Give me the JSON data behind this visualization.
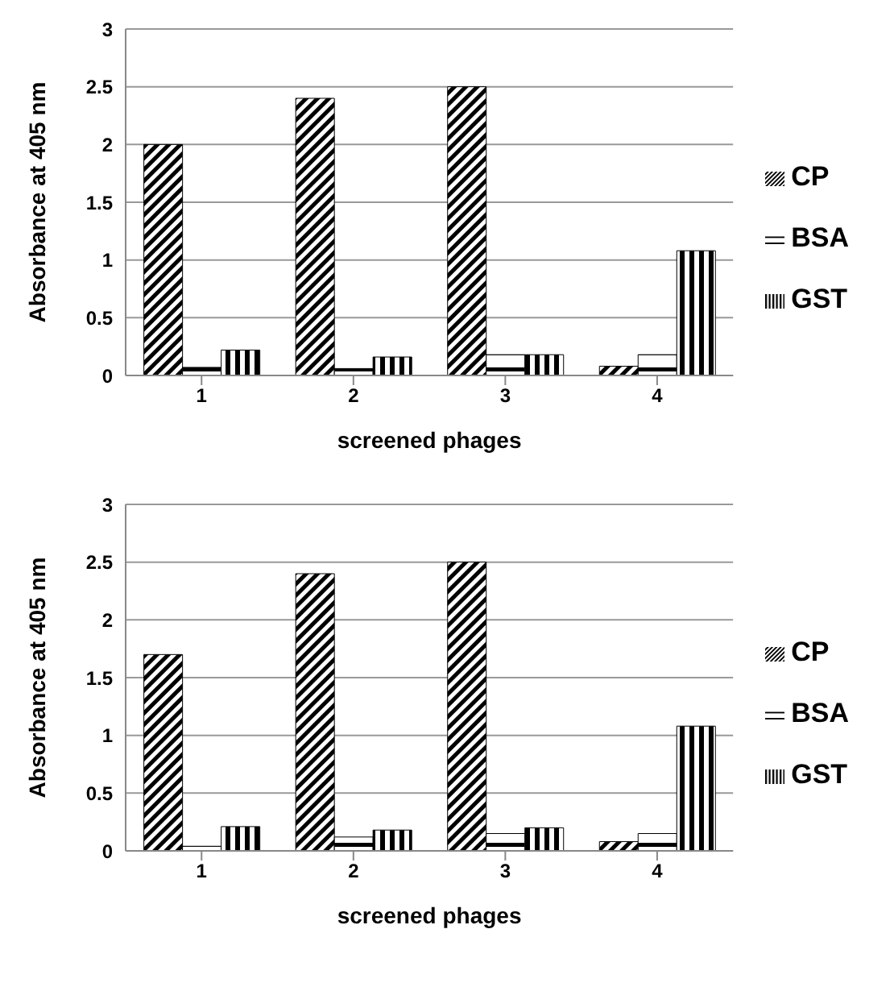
{
  "chart_data": [
    {
      "type": "bar",
      "xlabel": "screened phages",
      "ylabel": "Absorbance at 405 nm",
      "categories": [
        "1",
        "2",
        "3",
        "4"
      ],
      "series": [
        {
          "name": "CP",
          "color": "#000000",
          "values": [
            2.0,
            2.4,
            2.5,
            0.08
          ]
        },
        {
          "name": "BSA",
          "color": "#000000",
          "values": [
            0.07,
            0.06,
            0.18,
            0.18
          ]
        },
        {
          "name": "GST",
          "color": "#000000",
          "values": [
            0.22,
            0.16,
            0.18,
            1.08
          ]
        }
      ],
      "ylim": [
        0,
        3
      ],
      "yticks": [
        0,
        0.5,
        1,
        1.5,
        2,
        2.5,
        3
      ],
      "grid": "y",
      "legend": "right"
    },
    {
      "type": "bar",
      "xlabel": "screened phages",
      "ylabel": "Absorbance at 405 nm",
      "categories": [
        "1",
        "2",
        "3",
        "4"
      ],
      "series": [
        {
          "name": "CP",
          "color": "#000000",
          "values": [
            1.7,
            2.4,
            2.5,
            0.08
          ]
        },
        {
          "name": "BSA",
          "color": "#000000",
          "values": [
            0.04,
            0.12,
            0.15,
            0.15
          ]
        },
        {
          "name": "GST",
          "color": "#000000",
          "values": [
            0.21,
            0.18,
            0.2,
            1.08
          ]
        }
      ],
      "ylim": [
        0,
        3
      ],
      "yticks": [
        0,
        0.5,
        1,
        1.5,
        2,
        2.5,
        3
      ],
      "grid": "y",
      "legend": "right"
    }
  ]
}
